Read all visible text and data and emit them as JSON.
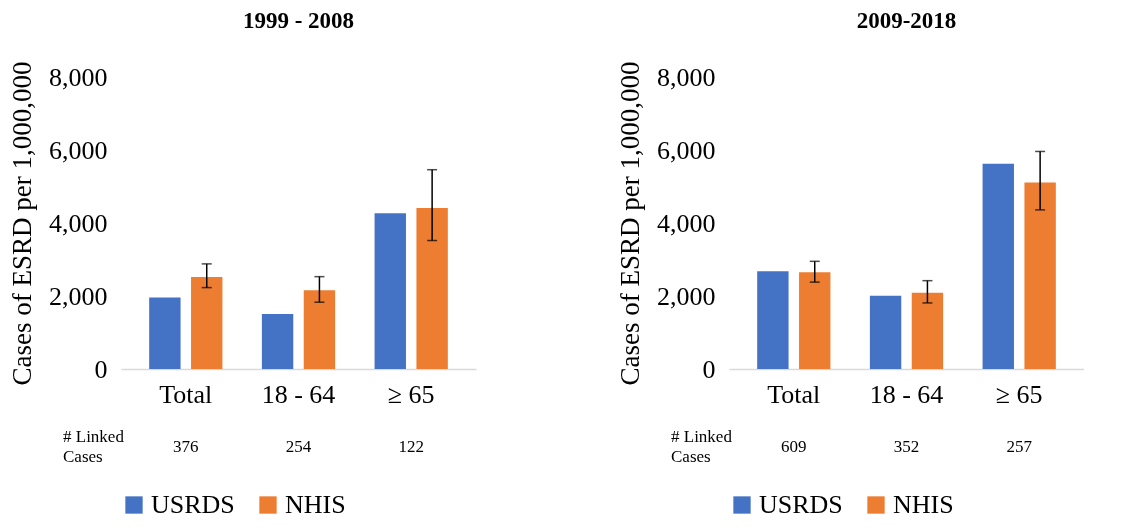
{
  "chart_data": [
    {
      "type": "bar",
      "title": "1999 - 2008",
      "ylabel": "Cases of ESRD per 1,000,000",
      "categories": [
        "Total",
        "18 - 64",
        "≥ 65"
      ],
      "ylim": [
        0,
        8000
      ],
      "yticks": [
        0,
        {
          "value": 2000,
          "label": "2,000"
        },
        {
          "value": 4000,
          "label": "4,000"
        },
        {
          "value": 6000,
          "label": "6,000"
        },
        {
          "value": 8000,
          "label": "8,000"
        }
      ],
      "grid": false,
      "legend": "bottom",
      "series": [
        {
          "name": "USRDS",
          "color": "#4472c4",
          "values": [
            1960,
            1510,
            4270
          ]
        },
        {
          "name": "NHIS",
          "color": "#ed7d31",
          "values": [
            2520,
            2160,
            4410
          ],
          "errors": [
            [
              2230,
              2880
            ],
            [
              1830,
              2530
            ],
            [
              3520,
              5460
            ]
          ]
        }
      ],
      "annotations": [
        "# Linked Cases",
        "376",
        "254",
        "122"
      ]
    },
    {
      "type": "bar",
      "title": "2009-2018",
      "ylabel": "Cases of ESRD per 1,000,000",
      "categories": [
        "Total",
        "18 - 64",
        "≥ 65"
      ],
      "ylim": [
        0,
        8000
      ],
      "yticks": [
        0,
        {
          "value": 2000,
          "label": "2,000"
        },
        {
          "value": 4000,
          "label": "4,000"
        },
        {
          "value": 6000,
          "label": "6,000"
        },
        {
          "value": 8000,
          "label": "8,000"
        }
      ],
      "grid": false,
      "legend": "bottom",
      "series": [
        {
          "name": "USRDS",
          "color": "#4472c4",
          "values": [
            2680,
            2010,
            5620
          ]
        },
        {
          "name": "NHIS",
          "color": "#ed7d31",
          "values": [
            2650,
            2090,
            5110
          ],
          "errors": [
            [
              2380,
              2950
            ],
            [
              1810,
              2420
            ],
            [
              4360,
              5960
            ]
          ]
        }
      ],
      "annotations": [
        "# Linked Cases",
        "609",
        "352",
        "257"
      ]
    }
  ]
}
